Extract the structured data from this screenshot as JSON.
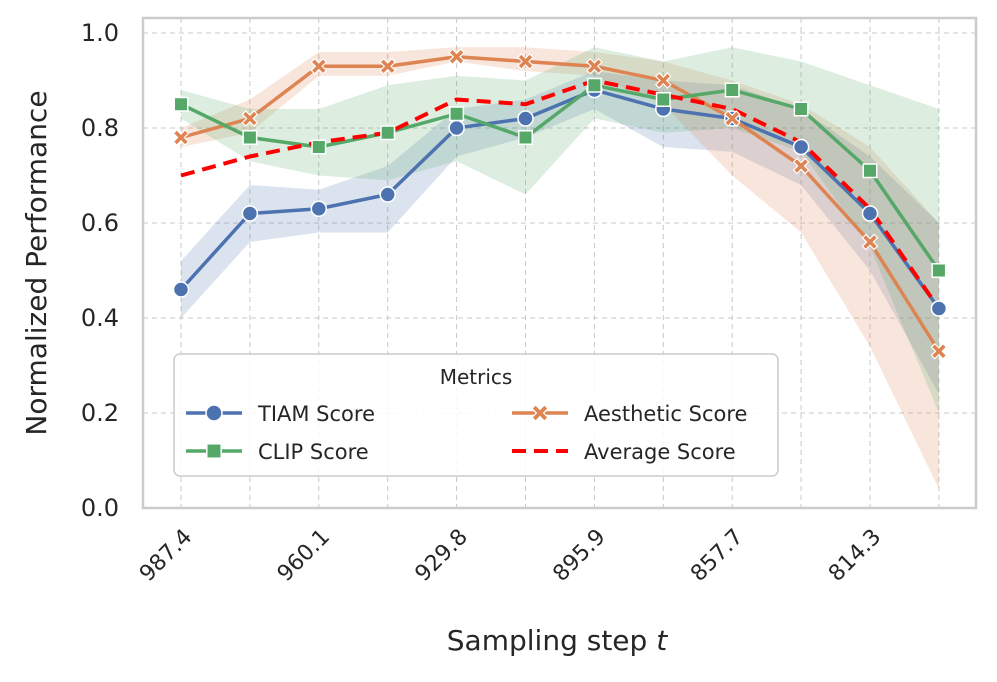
{
  "chart_data": {
    "type": "line",
    "title": "",
    "xlabel": "Sampling step",
    "xlabel_var": "t",
    "ylabel": "Normalized Performance",
    "ylim": [
      0.0,
      1.0
    ],
    "yticks": [
      "0.0",
      "0.2",
      "0.4",
      "0.6",
      "0.8",
      "1.0"
    ],
    "ytick_values": [
      0.0,
      0.2,
      0.4,
      0.6,
      0.8,
      1.0
    ],
    "xtick_labels": [
      "987.4",
      "960.1",
      "929.8",
      "895.9",
      "857.7",
      "814.3"
    ],
    "xtick_positions": [
      0,
      2,
      4,
      6,
      8,
      10
    ],
    "num_points": 12,
    "grid": true,
    "legend": {
      "title": "Metrics",
      "placement": "lower-left",
      "columns": 2
    },
    "series": [
      {
        "name": "TIAM Score",
        "color": "#4c72b0",
        "marker": "circle",
        "style": "solid",
        "values": [
          0.46,
          0.62,
          0.63,
          0.66,
          0.8,
          0.82,
          0.88,
          0.84,
          0.82,
          0.76,
          0.62,
          0.42
        ],
        "lower": [
          0.4,
          0.56,
          0.58,
          0.58,
          0.74,
          0.78,
          0.84,
          0.76,
          0.75,
          0.68,
          0.5,
          0.24
        ],
        "upper": [
          0.52,
          0.68,
          0.67,
          0.72,
          0.84,
          0.86,
          0.92,
          0.9,
          0.89,
          0.84,
          0.74,
          0.6
        ]
      },
      {
        "name": "Aesthetic Score",
        "color": "#dd8452",
        "marker": "x",
        "style": "solid",
        "values": [
          0.78,
          0.82,
          0.93,
          0.93,
          0.95,
          0.94,
          0.93,
          0.9,
          0.82,
          0.72,
          0.56,
          0.33
        ],
        "lower": [
          0.76,
          0.79,
          0.91,
          0.91,
          0.94,
          0.92,
          0.91,
          0.85,
          0.7,
          0.58,
          0.34,
          0.04
        ],
        "upper": [
          0.8,
          0.86,
          0.96,
          0.96,
          0.97,
          0.97,
          0.96,
          0.94,
          0.9,
          0.85,
          0.76,
          0.6
        ]
      },
      {
        "name": "CLIP Score",
        "color": "#55a868",
        "marker": "square",
        "style": "solid",
        "values": [
          0.85,
          0.78,
          0.76,
          0.79,
          0.83,
          0.78,
          0.89,
          0.86,
          0.88,
          0.84,
          0.71,
          0.5
        ],
        "lower": [
          0.82,
          0.73,
          0.7,
          0.69,
          0.73,
          0.66,
          0.82,
          0.79,
          0.8,
          0.75,
          0.55,
          0.2
        ],
        "upper": [
          0.88,
          0.84,
          0.84,
          0.89,
          0.91,
          0.9,
          0.97,
          0.94,
          0.97,
          0.94,
          0.89,
          0.84
        ]
      },
      {
        "name": "Average Score",
        "color": "#ff0000",
        "marker": "none",
        "style": "dashed",
        "values": [
          0.7,
          0.74,
          0.77,
          0.79,
          0.86,
          0.85,
          0.9,
          0.87,
          0.84,
          0.77,
          0.63,
          0.42
        ]
      }
    ]
  }
}
